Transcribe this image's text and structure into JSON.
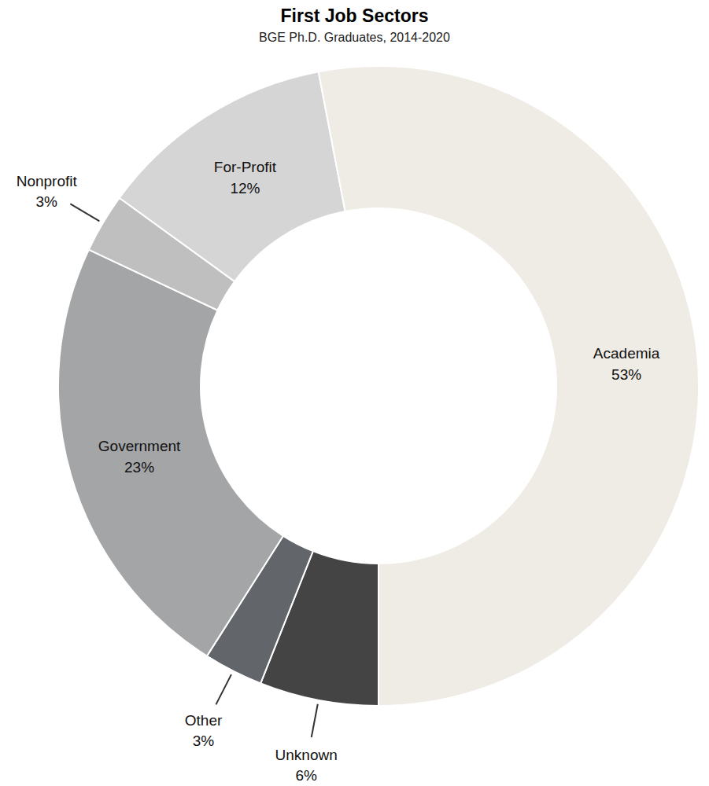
{
  "chart_data": {
    "type": "donut",
    "title": "First Job Sectors",
    "subtitle": "BGE Ph.D. Graduates, 2014-2020",
    "categories": [
      "Unknown",
      "Other",
      "Government",
      "Nonprofit",
      "For-Profit",
      "Academia"
    ],
    "values": [
      6,
      3,
      23,
      3,
      12,
      53
    ],
    "value_labels": [
      "6%",
      "3%",
      "23%",
      "3%",
      "12%",
      "53%"
    ],
    "colors": [
      "#444444",
      "#62666b",
      "#a4a5a7",
      "#bfbfbf",
      "#d5d5d5",
      "#efebe5"
    ],
    "data_labels": true
  }
}
